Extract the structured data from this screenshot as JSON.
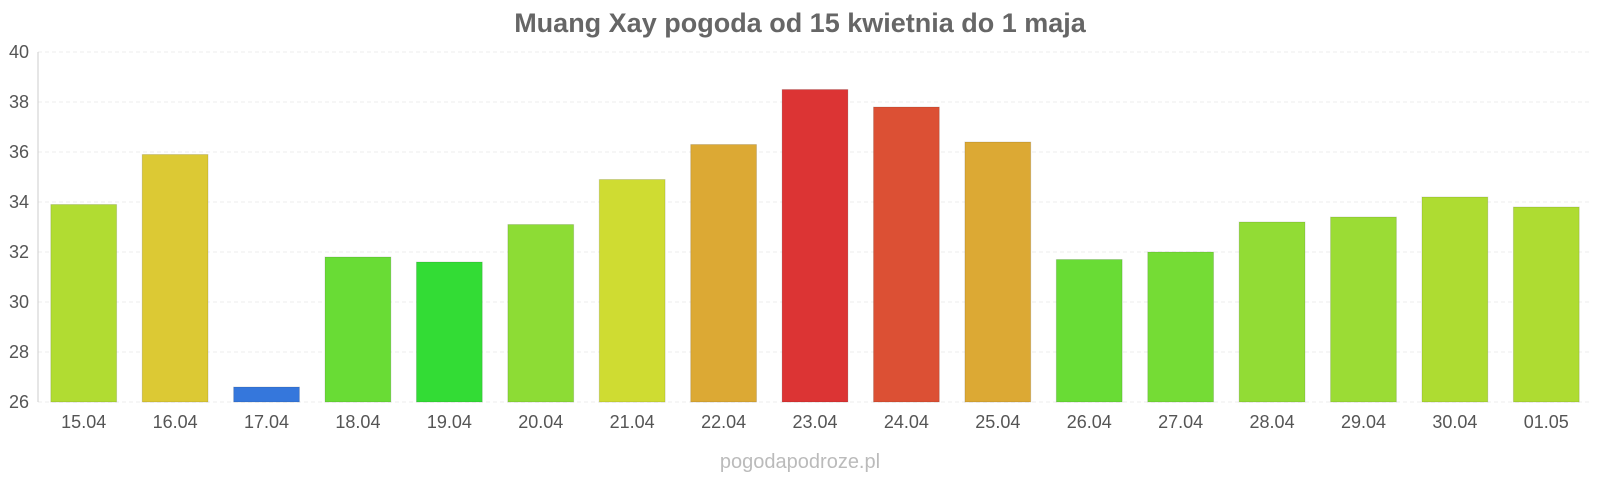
{
  "chart_data": {
    "type": "bar",
    "title": "Muang Xay pogoda od 15 kwietnia do 1 maja",
    "xlabel": "",
    "ylabel": "",
    "ylim": [
      26,
      40
    ],
    "yticks": [
      26,
      28,
      30,
      32,
      34,
      36,
      38,
      40
    ],
    "grid": true,
    "legend": "none",
    "categories": [
      "15.04",
      "16.04",
      "17.04",
      "18.04",
      "19.04",
      "20.04",
      "21.04",
      "22.04",
      "23.04",
      "24.04",
      "25.04",
      "26.04",
      "27.04",
      "28.04",
      "29.04",
      "30.04",
      "01.05"
    ],
    "values": [
      33.9,
      35.9,
      26.6,
      31.8,
      31.6,
      33.1,
      34.9,
      36.3,
      38.5,
      37.8,
      36.4,
      31.7,
      32.0,
      33.2,
      33.4,
      34.2,
      33.8
    ],
    "colors": [
      "#b1dc32",
      "#dcc934",
      "#3577dc",
      "#69dc35",
      "#33dc35",
      "#8ddc35",
      "#cfdc32",
      "#dca934",
      "#dc3434",
      "#dc5034",
      "#dca934",
      "#69dc35",
      "#75dc35",
      "#92dc35",
      "#9bdc35",
      "#aedc32",
      "#aedc32"
    ]
  },
  "source": "pogodapodroze.pl"
}
